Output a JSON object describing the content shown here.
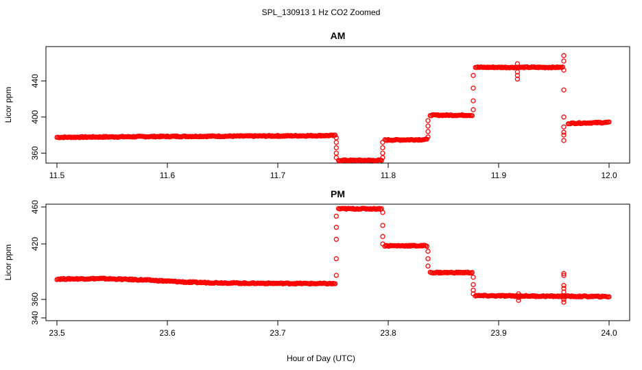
{
  "figure": {
    "title": "SPL_130913 1 Hz CO2 Zoomed",
    "xlabel": "Hour of Day (UTC)"
  },
  "colors": {
    "series": "#ff0000",
    "axis": "#000000"
  },
  "chart_data": [
    {
      "type": "scatter",
      "title": "AM",
      "xlabel": "",
      "ylabel": "Licor ppm",
      "xlim": [
        11.5,
        12.0
      ],
      "ylim": [
        349,
        478
      ],
      "xticks": [
        11.5,
        11.6,
        11.7,
        11.8,
        11.9,
        12.0
      ],
      "xtick_labels": [
        "11.5",
        "11.6",
        "11.7",
        "11.8",
        "11.9",
        "12.0"
      ],
      "yticks": [
        360,
        400,
        440
      ],
      "ytick_labels": [
        "360",
        "400",
        "440"
      ],
      "grid": false,
      "marker": "open-circle",
      "segments": [
        {
          "x_start": 11.5,
          "x_end": 11.6,
          "y_start": 377.5,
          "y_end": 378.5
        },
        {
          "x_start": 11.6,
          "x_end": 11.7,
          "y_start": 378.5,
          "y_end": 379.0
        },
        {
          "x_start": 11.7,
          "x_end": 11.752,
          "y_start": 379.0,
          "y_end": 379.5
        },
        {
          "x_start": 11.755,
          "x_end": 11.794,
          "y_start": 352.0,
          "y_end": 352.0
        },
        {
          "x_start": 11.797,
          "x_end": 11.835,
          "y_start": 374.5,
          "y_end": 375.0
        },
        {
          "x_start": 11.838,
          "x_end": 11.876,
          "y_start": 402.0,
          "y_end": 402.0
        },
        {
          "x_start": 11.879,
          "x_end": 11.958,
          "y_start": 455.0,
          "y_end": 455.0
        },
        {
          "x_start": 11.963,
          "x_end": 12.0,
          "y_start": 393.0,
          "y_end": 394.0
        }
      ],
      "transitions": [
        {
          "x": 11.753,
          "y": [
            377,
            372,
            366,
            360,
            355
          ]
        },
        {
          "x": 11.795,
          "y": [
            355,
            360,
            366,
            372
          ]
        },
        {
          "x": 11.836,
          "y": [
            378,
            384,
            390,
            396
          ]
        },
        {
          "x": 11.877,
          "y": [
            408,
            418,
            432,
            446
          ]
        },
        {
          "x": 11.917,
          "y": [
            450,
            446,
            442,
            459
          ]
        },
        {
          "x": 11.959,
          "y": [
            468,
            462,
            452,
            430,
            400,
            380,
            374,
            383,
            389
          ]
        }
      ]
    },
    {
      "type": "scatter",
      "title": "PM",
      "xlabel": "",
      "ylabel": "Licor ppm",
      "xlim": [
        23.5,
        24.0
      ],
      "ylim": [
        337,
        463
      ],
      "xticks": [
        23.5,
        23.6,
        23.7,
        23.8,
        23.9,
        24.0
      ],
      "xtick_labels": [
        "23.5",
        "23.6",
        "23.7",
        "23.8",
        "23.9",
        "24.0"
      ],
      "yticks": [
        340,
        360,
        420,
        460
      ],
      "ytick_labels": [
        "340",
        "360",
        "420",
        "460"
      ],
      "grid": false,
      "marker": "open-circle",
      "segments": [
        {
          "x_start": 23.5,
          "x_end": 23.54,
          "y_start": 382.0,
          "y_end": 382.5
        },
        {
          "x_start": 23.54,
          "x_end": 23.58,
          "y_start": 382.5,
          "y_end": 381.0
        },
        {
          "x_start": 23.58,
          "x_end": 23.62,
          "y_start": 381.0,
          "y_end": 378.5
        },
        {
          "x_start": 23.62,
          "x_end": 23.67,
          "y_start": 378.5,
          "y_end": 377.5
        },
        {
          "x_start": 23.67,
          "x_end": 23.752,
          "y_start": 377.5,
          "y_end": 377.0
        },
        {
          "x_start": 23.755,
          "x_end": 23.794,
          "y_start": 458.0,
          "y_end": 458.0
        },
        {
          "x_start": 23.797,
          "x_end": 23.835,
          "y_start": 418.0,
          "y_end": 418.0
        },
        {
          "x_start": 23.838,
          "x_end": 23.876,
          "y_start": 389.0,
          "y_end": 389.0
        },
        {
          "x_start": 23.879,
          "x_end": 24.0,
          "y_start": 364.0,
          "y_end": 363.0
        }
      ],
      "transitions": [
        {
          "x": 23.753,
          "y": [
            386,
            404,
            425,
            438,
            450
          ]
        },
        {
          "x": 23.795,
          "y": [
            454,
            440,
            428,
            420
          ]
        },
        {
          "x": 23.836,
          "y": [
            412,
            404,
            396
          ]
        },
        {
          "x": 23.877,
          "y": [
            384,
            376,
            370,
            366
          ]
        },
        {
          "x": 23.918,
          "y": [
            366,
            362,
            359
          ]
        },
        {
          "x": 23.959,
          "y": [
            360,
            368,
            372,
            386,
            388,
            375,
            364,
            357
          ]
        }
      ]
    }
  ]
}
